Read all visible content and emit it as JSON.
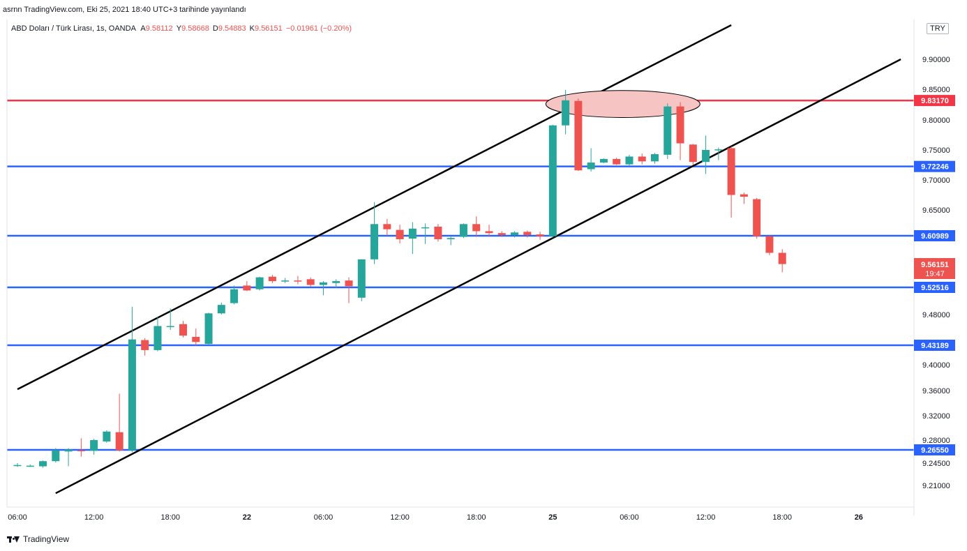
{
  "header": {
    "published": "asrnn TradingView.com, Eki 25, 2021 18:40 UTC+3 tarihinde yayınlandı"
  },
  "legend": {
    "symbol": "ABD Doları / Türk Lirası, 1s, OANDA",
    "o_label": "A",
    "o_value": "9.58112",
    "h_label": "Y",
    "h_value": "9.58668",
    "l_label": "D",
    "l_value": "9.54883",
    "c_label": "K",
    "c_value": "9.56151",
    "change": "−0.01961 (−0.20%)"
  },
  "currency_badge": "TRY",
  "footer": {
    "brand": "TradingView"
  },
  "colors": {
    "up": "#26a69a",
    "down": "#ef5350",
    "support": "#2962ff",
    "resistance": "#f23645",
    "channel": "#000000",
    "ellipse_fill": "#f7c4c4",
    "axis_text": "#131722"
  },
  "chart_data": {
    "type": "candlestick",
    "symbol": "USD/TRY",
    "timeframe": "1h",
    "y_axis": {
      "range": [
        9.18,
        9.95
      ],
      "tick_labels": [
        "9.90000",
        "9.85000",
        "9.80000",
        "9.75000",
        "9.70000",
        "9.65000",
        "9.48000",
        "9.40000",
        "9.36000",
        "9.32000",
        "9.28000",
        "9.24500",
        "9.21000"
      ]
    },
    "x_axis": {
      "tick_labels": [
        "06:00",
        "12:00",
        "18:00",
        "22",
        "06:00",
        "12:00",
        "18:00",
        "25",
        "06:00",
        "12:00",
        "18:00",
        "26"
      ],
      "tick_positions": [
        0,
        6,
        12,
        18,
        24,
        30,
        36,
        42,
        48,
        54,
        60,
        66
      ]
    },
    "candles": [
      {
        "t": 0,
        "o": 9.242,
        "h": 9.245,
        "l": 9.239,
        "c": 9.242
      },
      {
        "t": 1,
        "o": 9.24,
        "h": 9.243,
        "l": 9.239,
        "c": 9.241
      },
      {
        "t": 2,
        "o": 9.24,
        "h": 9.249,
        "l": 9.238,
        "c": 9.248
      },
      {
        "t": 3,
        "o": 9.248,
        "h": 9.268,
        "l": 9.246,
        "c": 9.265
      },
      {
        "t": 4,
        "o": 9.263,
        "h": 9.268,
        "l": 9.24,
        "c": 9.266
      },
      {
        "t": 5,
        "o": 9.265,
        "h": 9.283,
        "l": 9.255,
        "c": 9.264
      },
      {
        "t": 6,
        "o": 9.264,
        "h": 9.282,
        "l": 9.258,
        "c": 9.28
      },
      {
        "t": 7,
        "o": 9.278,
        "h": 9.296,
        "l": 9.276,
        "c": 9.294
      },
      {
        "t": 8,
        "o": 9.293,
        "h": 9.355,
        "l": 9.263,
        "c": 9.265
      },
      {
        "t": 9,
        "o": 9.265,
        "h": 9.493,
        "l": 9.262,
        "c": 9.441
      },
      {
        "t": 10,
        "o": 9.44,
        "h": 9.443,
        "l": 9.415,
        "c": 9.424
      },
      {
        "t": 11,
        "o": 9.424,
        "h": 9.476,
        "l": 9.422,
        "c": 9.462
      },
      {
        "t": 12,
        "o": 9.462,
        "h": 9.49,
        "l": 9.456,
        "c": 9.462
      },
      {
        "t": 13,
        "o": 9.465,
        "h": 9.47,
        "l": 9.444,
        "c": 9.447
      },
      {
        "t": 14,
        "o": 9.445,
        "h": 9.458,
        "l": 9.431,
        "c": 9.437
      },
      {
        "t": 15,
        "o": 9.434,
        "h": 9.483,
        "l": 9.432,
        "c": 9.482
      },
      {
        "t": 16,
        "o": 9.482,
        "h": 9.5,
        "l": 9.48,
        "c": 9.496
      },
      {
        "t": 17,
        "o": 9.499,
        "h": 9.528,
        "l": 9.497,
        "c": 9.522
      },
      {
        "t": 18,
        "o": 9.528,
        "h": 9.535,
        "l": 9.519,
        "c": 9.52
      },
      {
        "t": 19,
        "o": 9.522,
        "h": 9.542,
        "l": 9.52,
        "c": 9.541
      },
      {
        "t": 20,
        "o": 9.542,
        "h": 9.545,
        "l": 9.532,
        "c": 9.535
      },
      {
        "t": 21,
        "o": 9.536,
        "h": 9.54,
        "l": 9.532,
        "c": 9.536
      },
      {
        "t": 22,
        "o": 9.536,
        "h": 9.543,
        "l": 9.53,
        "c": 9.535
      },
      {
        "t": 23,
        "o": 9.538,
        "h": 9.541,
        "l": 9.526,
        "c": 9.529
      },
      {
        "t": 24,
        "o": 9.529,
        "h": 9.535,
        "l": 9.512,
        "c": 9.533
      },
      {
        "t": 25,
        "o": 9.532,
        "h": 9.538,
        "l": 9.524,
        "c": 9.535
      },
      {
        "t": 26,
        "o": 9.536,
        "h": 9.541,
        "l": 9.499,
        "c": 9.527
      },
      {
        "t": 27,
        "o": 9.508,
        "h": 9.57,
        "l": 9.502,
        "c": 9.57
      },
      {
        "t": 28,
        "o": 9.57,
        "h": 9.663,
        "l": 9.562,
        "c": 9.628
      },
      {
        "t": 29,
        "o": 9.628,
        "h": 9.636,
        "l": 9.61,
        "c": 9.62
      },
      {
        "t": 30,
        "o": 9.619,
        "h": 9.627,
        "l": 9.597,
        "c": 9.604
      },
      {
        "t": 31,
        "o": 9.605,
        "h": 9.631,
        "l": 9.579,
        "c": 9.621
      },
      {
        "t": 32,
        "o": 9.622,
        "h": 9.629,
        "l": 9.596,
        "c": 9.623
      },
      {
        "t": 33,
        "o": 9.624,
        "h": 9.628,
        "l": 9.6,
        "c": 9.604
      },
      {
        "t": 34,
        "o": 9.604,
        "h": 9.608,
        "l": 9.594,
        "c": 9.606
      },
      {
        "t": 35,
        "o": 9.608,
        "h": 9.629,
        "l": 9.606,
        "c": 9.628
      },
      {
        "t": 36,
        "o": 9.628,
        "h": 9.64,
        "l": 9.608,
        "c": 9.617
      },
      {
        "t": 37,
        "o": 9.617,
        "h": 9.627,
        "l": 9.608,
        "c": 9.614
      },
      {
        "t": 38,
        "o": 9.614,
        "h": 9.617,
        "l": 9.608,
        "c": 9.611
      },
      {
        "t": 39,
        "o": 9.611,
        "h": 9.617,
        "l": 9.607,
        "c": 9.615
      },
      {
        "t": 40,
        "o": 9.616,
        "h": 9.618,
        "l": 9.607,
        "c": 9.611
      },
      {
        "t": 41,
        "o": 9.612,
        "h": 9.616,
        "l": 9.603,
        "c": 9.609
      },
      {
        "t": 42,
        "o": 9.609,
        "h": 9.792,
        "l": 9.607,
        "c": 9.791
      },
      {
        "t": 43,
        "o": 9.791,
        "h": 9.849,
        "l": 9.776,
        "c": 9.832
      },
      {
        "t": 44,
        "o": 9.831,
        "h": 9.835,
        "l": 9.715,
        "c": 9.716
      },
      {
        "t": 45,
        "o": 9.718,
        "h": 9.753,
        "l": 9.714,
        "c": 9.729
      },
      {
        "t": 46,
        "o": 9.729,
        "h": 9.736,
        "l": 9.728,
        "c": 9.735
      },
      {
        "t": 47,
        "o": 9.735,
        "h": 9.737,
        "l": 9.725,
        "c": 9.726
      },
      {
        "t": 48,
        "o": 9.726,
        "h": 9.742,
        "l": 9.724,
        "c": 9.739
      },
      {
        "t": 49,
        "o": 9.739,
        "h": 9.744,
        "l": 9.726,
        "c": 9.731
      },
      {
        "t": 50,
        "o": 9.731,
        "h": 9.745,
        "l": 9.727,
        "c": 9.743
      },
      {
        "t": 51,
        "o": 9.742,
        "h": 9.827,
        "l": 9.735,
        "c": 9.822
      },
      {
        "t": 52,
        "o": 9.822,
        "h": 9.829,
        "l": 9.733,
        "c": 9.761
      },
      {
        "t": 53,
        "o": 9.759,
        "h": 9.76,
        "l": 9.725,
        "c": 9.73
      },
      {
        "t": 54,
        "o": 9.73,
        "h": 9.774,
        "l": 9.71,
        "c": 9.75
      },
      {
        "t": 55,
        "o": 9.751,
        "h": 9.754,
        "l": 9.733,
        "c": 9.751
      },
      {
        "t": 56,
        "o": 9.753,
        "h": 9.756,
        "l": 9.638,
        "c": 9.675
      },
      {
        "t": 57,
        "o": 9.676,
        "h": 9.679,
        "l": 9.66,
        "c": 9.672
      },
      {
        "t": 58,
        "o": 9.668,
        "h": 9.67,
        "l": 9.605,
        "c": 9.609
      },
      {
        "t": 59,
        "o": 9.609,
        "h": 9.61,
        "l": 9.577,
        "c": 9.581
      },
      {
        "t": 60,
        "o": 9.581,
        "h": 9.587,
        "l": 9.549,
        "c": 9.562
      }
    ],
    "horizontal_levels": [
      {
        "value": 9.8317,
        "label": "9.83170",
        "kind": "resistance"
      },
      {
        "value": 9.72246,
        "label": "9.72246",
        "kind": "support"
      },
      {
        "value": 9.60989,
        "label": "9.60989",
        "kind": "support"
      },
      {
        "value": 9.52516,
        "label": "9.52516",
        "kind": "support"
      },
      {
        "value": 9.43189,
        "label": "9.43189",
        "kind": "support"
      },
      {
        "value": 9.2655,
        "label": "9.26550",
        "kind": "support"
      }
    ],
    "trend_lines": [
      {
        "name": "upper-channel",
        "p1": {
          "t": 0,
          "v": 9.362
        },
        "p2": {
          "t": 56,
          "v": 9.957
        }
      },
      {
        "name": "lower-channel",
        "p1": {
          "t": 3,
          "v": 9.198
        },
        "p2": {
          "t": 69.3,
          "v": 9.9
        }
      }
    ],
    "ellipse": {
      "t1": 42,
      "t2": 53,
      "v_center": 9.826,
      "v_top": 9.848,
      "v_bottom": 9.804
    },
    "last_price": {
      "value": "9.56151",
      "countdown": "19:47",
      "v": 9.56151
    }
  }
}
